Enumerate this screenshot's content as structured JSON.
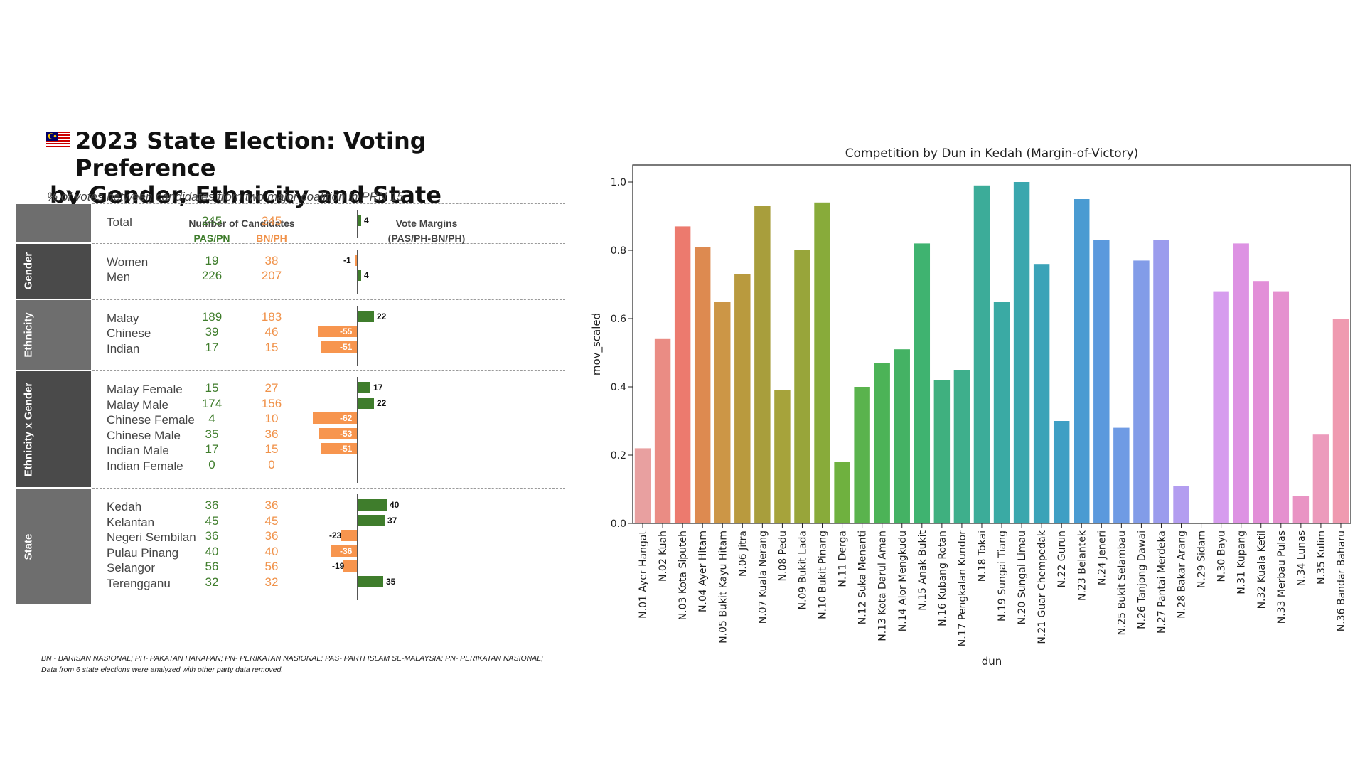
{
  "left": {
    "title_line1": "2023 State Election: Voting Preference",
    "title_line2": "by Gender, Ethnicity and State",
    "subtitle": "% of votes between candidates from two major coalition in PRN 15",
    "col_candidates": "Number of Candidates",
    "col_pas_pn": "PAS/PN",
    "col_bn_ph": "BN/PH",
    "col_margins": "Vote Margins",
    "col_margins_sub": "(PAS/PH-BN/PH)",
    "colors": {
      "band_dark": "#4a4a4a",
      "band_light": "#6e6e6e",
      "green": "#3f7d2c",
      "orange": "#f7954e"
    },
    "groups": [
      {
        "label": "",
        "rows": [
          {
            "label": "Total",
            "pas_pn": "245",
            "bn_ph": "245",
            "margin": 4
          }
        ]
      },
      {
        "label": "Gender",
        "rows": [
          {
            "label": "Women",
            "pas_pn": "19",
            "bn_ph": "38",
            "margin": -1
          },
          {
            "label": "Men",
            "pas_pn": "226",
            "bn_ph": "207",
            "margin": 4
          }
        ]
      },
      {
        "label": "Ethnicity",
        "rows": [
          {
            "label": "Malay",
            "pas_pn": "189",
            "bn_ph": "183",
            "margin": 22
          },
          {
            "label": "Chinese",
            "pas_pn": "39",
            "bn_ph": "46",
            "margin": -55
          },
          {
            "label": "Indian",
            "pas_pn": "17",
            "bn_ph": "15",
            "margin": -51
          }
        ]
      },
      {
        "label": "Ethnicity x Gender",
        "rows": [
          {
            "label": "Malay Female",
            "pas_pn": "15",
            "bn_ph": "27",
            "margin": 17
          },
          {
            "label": "Malay Male",
            "pas_pn": "174",
            "bn_ph": "156",
            "margin": 22
          },
          {
            "label": "Chinese Female",
            "pas_pn": "4",
            "bn_ph": "10",
            "margin": -62
          },
          {
            "label": "Chinese Male",
            "pas_pn": "35",
            "bn_ph": "36",
            "margin": -53
          },
          {
            "label": "Indian Male",
            "pas_pn": "17",
            "bn_ph": "15",
            "margin": -51
          },
          {
            "label": "Indian Female",
            "pas_pn": "0",
            "bn_ph": "0",
            "margin": null
          }
        ]
      },
      {
        "label": "State",
        "rows": [
          {
            "label": "Kedah",
            "pas_pn": "36",
            "bn_ph": "36",
            "margin": 40
          },
          {
            "label": "Kelantan",
            "pas_pn": "45",
            "bn_ph": "45",
            "margin": 37
          },
          {
            "label": "Negeri Sembilan",
            "pas_pn": "36",
            "bn_ph": "36",
            "margin": -23
          },
          {
            "label": "Pulau Pinang",
            "pas_pn": "40",
            "bn_ph": "40",
            "margin": -36
          },
          {
            "label": "Selangor",
            "pas_pn": "56",
            "bn_ph": "56",
            "margin": -19
          },
          {
            "label": "Terengganu",
            "pas_pn": "32",
            "bn_ph": "32",
            "margin": 35
          }
        ]
      }
    ],
    "footnote_1": "BN - BARISAN NASIONAL; PH- PAKATAN HARAPAN; PN- PERIKATAN NASIONAL; PAS- PARTI ISLAM SE-MALAYSIA; PN- PERIKATAN NASIONAL;",
    "footnote_2": "Data from 6 state elections were analyzed with other party data removed."
  },
  "chart_data": {
    "type": "bar",
    "title": "Competition by Dun in Kedah (Margin-of-Victory)",
    "xlabel": "dun",
    "ylabel": "mov_scaled",
    "ylim": [
      0,
      1.05
    ],
    "yticks": [
      "0.0",
      "0.2",
      "0.4",
      "0.6",
      "0.8",
      "1.0"
    ],
    "grid": false,
    "categories": [
      "N.01 Ayer Hangat",
      "N.02 Kuah",
      "N.03 Kota Siputeh",
      "N.04 Ayer Hitam",
      "N.05 Bukit Kayu Hitam",
      "N.06 Jitra",
      "N.07 Kuala Nerang",
      "N.08 Pedu",
      "N.09 Bukit Lada",
      "N.10 Bukit Pinang",
      "N.11 Derga",
      "N.12 Suka Menanti",
      "N.13 Kota Darul Aman",
      "N.14 Alor Mengkudu",
      "N.15 Anak Bukit",
      "N.16 Kubang Rotan",
      "N.17 Pengkalan Kundor",
      "N.18 Tokai",
      "N.19 Sungai Tiang",
      "N.20 Sungai Limau",
      "N.21 Guar Chempedak",
      "N.22 Gurun",
      "N.23 Belantek",
      "N.24 Jeneri",
      "N.25 Bukit Selambau",
      "N.26 Tanjong Dawai",
      "N.27 Pantai Merdeka",
      "N.28 Bakar Arang",
      "N.29 Sidam",
      "N.30 Bayu",
      "N.31 Kupang",
      "N.32 Kuala Ketil",
      "N.33 Merbau Pulas",
      "N.34 Lunas",
      "N.35 Kulim",
      "N.36 Bandar Baharu"
    ],
    "values": [
      0.22,
      0.54,
      0.87,
      0.81,
      0.65,
      0.73,
      0.93,
      0.39,
      0.8,
      0.94,
      0.18,
      0.4,
      0.47,
      0.51,
      0.82,
      0.42,
      0.45,
      0.99,
      0.65,
      1.0,
      0.76,
      0.3,
      0.95,
      0.83,
      0.28,
      0.77,
      0.83,
      0.11,
      0.0,
      0.68,
      0.82,
      0.71,
      0.68,
      0.08,
      0.26,
      0.6
    ],
    "colors": [
      "#e8a0a0",
      "#ea8c84",
      "#ec7a6e",
      "#dd8a50",
      "#cc9646",
      "#b99a3e",
      "#a89e3c",
      "#a6a33b",
      "#98a53a",
      "#88ab3a",
      "#6fb13f",
      "#5ab34d",
      "#4cb357",
      "#44b264",
      "#3fb370",
      "#3fb07f",
      "#3eaf8c",
      "#3cac99",
      "#3aaaa4",
      "#3aa7ae",
      "#3ba3b8",
      "#3e9fc4",
      "#4a9bd2",
      "#5b99dd",
      "#6f9be4",
      "#829ce8",
      "#9b9ced",
      "#b39df0",
      "#c79cf0",
      "#d69cee",
      "#dd92e3",
      "#e28fd8",
      "#e591cf",
      "#e994c4",
      "#ec9bbc",
      "#ef9ab0"
    ]
  }
}
